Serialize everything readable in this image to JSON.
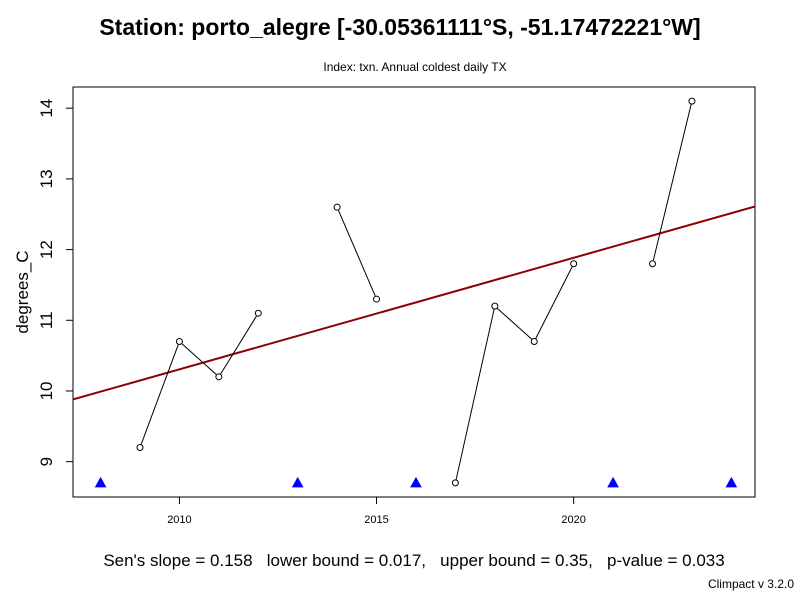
{
  "chart_data": {
    "type": "line",
    "title": "Station: porto_alegre [-30.05361111°S, -51.17472221°W]",
    "subtitle": "Index: txn. Annual coldest daily TX",
    "xlabel": "",
    "ylabel": "degrees_C",
    "xlim": [
      2007.3,
      2024.6
    ],
    "ylim": [
      8.5,
      14.3
    ],
    "x_ticks": [
      2010,
      2015,
      2020
    ],
    "y_ticks": [
      9,
      10,
      11,
      12,
      13,
      14
    ],
    "grid": false,
    "series": [
      {
        "x": [
          2009,
          2010,
          2011,
          2012,
          2014,
          2015,
          2017,
          2018,
          2019,
          2020,
          2022,
          2023
        ],
        "y": [
          9.2,
          10.7,
          10.2,
          11.1,
          12.6,
          11.3,
          8.7,
          11.2,
          10.7,
          11.8,
          11.8,
          14.1
        ],
        "color": "#000000"
      }
    ],
    "trend_line": {
      "x": [
        2007.3,
        2024.6
      ],
      "y": [
        9.88,
        12.61
      ],
      "color": "#8b0000"
    },
    "missing_years": {
      "x": [
        2008,
        2013,
        2016,
        2021,
        2024
      ],
      "y": 8.7,
      "color": "#0000ff"
    }
  },
  "stats_text": "Sen's slope = 0.158   lower bound = 0.017,   upper bound = 0.35,   p-value = 0.033",
  "credit": "Climpact v 3.2.0"
}
